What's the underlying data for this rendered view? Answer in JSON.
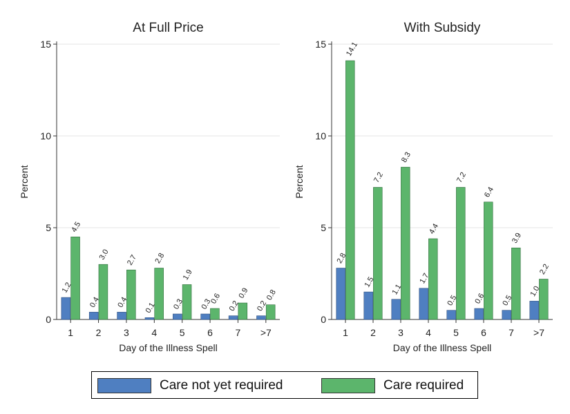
{
  "colors": {
    "not_yet": "#4f7fc1",
    "required": "#5cb56c",
    "not_yet_border": "#2e4f7f",
    "required_border": "#2e6b3b"
  },
  "chart_data": [
    {
      "type": "bar",
      "title": "At Full Price",
      "xlabel": "Day of the Illness Spell",
      "ylabel": "Percent",
      "ylim": [
        0,
        15
      ],
      "yticks": [
        "0",
        "5",
        "10",
        "15"
      ],
      "categories": [
        "1",
        "2",
        "3",
        "4",
        "5",
        "6",
        "7",
        ">7"
      ],
      "grid": true,
      "legend": "bottom",
      "series": [
        {
          "name": "Care not yet required",
          "values": [
            1.2,
            0.4,
            0.4,
            0.1,
            0.3,
            0.3,
            0.2,
            0.2
          ],
          "labels": [
            "1.2",
            "0.4",
            "0.4",
            "0.1",
            "0.3",
            "0.3",
            "0.2",
            "0.2"
          ]
        },
        {
          "name": "Care required",
          "values": [
            4.5,
            3.0,
            2.7,
            2.8,
            1.9,
            0.6,
            0.9,
            0.8
          ],
          "labels": [
            "4.5",
            "3.0",
            "2.7",
            "2.8",
            "1.9",
            "0.6",
            "0.9",
            "0.8"
          ]
        }
      ]
    },
    {
      "type": "bar",
      "title": "With Subsidy",
      "xlabel": "Day of the Illness Spell",
      "ylabel": "Percent",
      "ylim": [
        0,
        15
      ],
      "yticks": [
        "0",
        "5",
        "10",
        "15"
      ],
      "categories": [
        "1",
        "2",
        "3",
        "4",
        "5",
        "6",
        "7",
        ">7"
      ],
      "grid": true,
      "legend": "bottom",
      "series": [
        {
          "name": "Care not yet required",
          "values": [
            2.8,
            1.5,
            1.1,
            1.7,
            0.5,
            0.6,
            0.5,
            1.0
          ],
          "labels": [
            "2.8",
            "1.5",
            "1.1",
            "1.7",
            "0.5",
            "0.6",
            "0.5",
            "1.0"
          ]
        },
        {
          "name": "Care required",
          "values": [
            14.1,
            7.2,
            8.3,
            4.4,
            7.2,
            6.4,
            3.9,
            2.2
          ],
          "labels": [
            "14.1",
            "7.2",
            "8.3",
            "4.4",
            "7.2",
            "6.4",
            "3.9",
            "2.2"
          ]
        }
      ]
    }
  ],
  "legend": {
    "items": [
      {
        "label": "Care not yet required"
      },
      {
        "label": "Care required"
      }
    ]
  }
}
